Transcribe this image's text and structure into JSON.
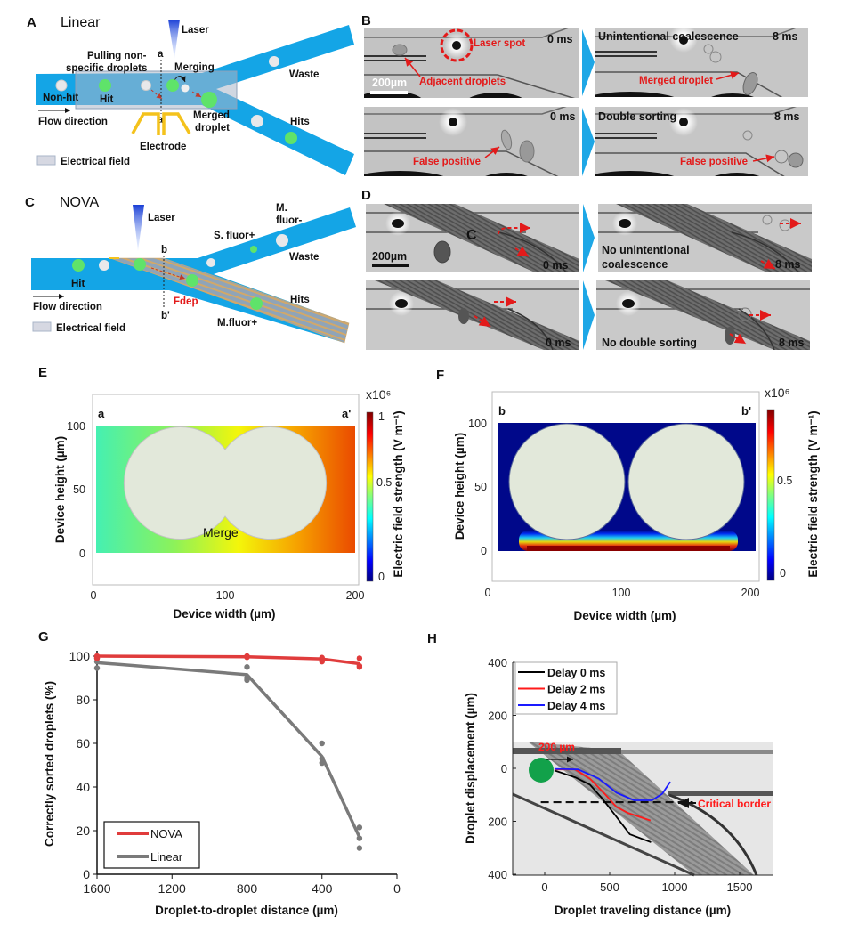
{
  "panels": {
    "A": {
      "letter": "A",
      "title": "Linear",
      "laser": "Laser",
      "pulling_1": "Pulling non-",
      "pulling_2": "specific droplets",
      "cut_top": "a",
      "cut_bottom": "a'",
      "merging": "Merging",
      "non_hit": "Non-hit",
      "hit": "Hit",
      "waste": "Waste",
      "hits": "Hits",
      "merged_1": "Merged",
      "merged_2": "droplet",
      "electrode": "Electrode",
      "flow": "Flow direction",
      "field_legend": "Electrical field"
    },
    "B": {
      "letter": "B",
      "t0": "0 ms",
      "t8": "8 ms",
      "laser_spot": "Laser spot",
      "adjacent": "Adjacent droplets",
      "scale": "200µm",
      "coalescence": "Unintentional coalescence",
      "merged": "Merged droplet",
      "false_pos": "False positive",
      "double": "Double sorting"
    },
    "C": {
      "letter": "C",
      "title": "NOVA",
      "laser": "Laser",
      "hit": "Hit",
      "flow": "Flow direction",
      "cut_top": "b",
      "cut_bottom": "b'",
      "fdep": "Fdep",
      "mfluor_plus": "M.fluor+",
      "hits": "Hits",
      "waste": "Waste",
      "sfluor": "S. fluor+",
      "mfluor_minus_1": "M.",
      "mfluor_minus_2": "fluor-",
      "field_legend": "Electrical field"
    },
    "D": {
      "letter": "D",
      "c_mark": "C",
      "scale": "200µm",
      "t0": "0 ms",
      "t8": "8 ms",
      "no_coal_1": "No unintentional",
      "no_coal_2": "coalescence",
      "no_double": "No double sorting"
    },
    "E": {
      "letter": "E",
      "left": "a",
      "right": "a'",
      "merge": "Merge"
    },
    "F": {
      "letter": "F",
      "left": "b",
      "right": "b'"
    },
    "G": {
      "letter": "G"
    },
    "H": {
      "letter": "H",
      "scale_label": "200 µm",
      "critical": "Critical border"
    }
  },
  "colors": {
    "channel": "#14a5e6",
    "hit": "#5fe36a",
    "red": "#e31a1a",
    "electrode": "#f4c21c",
    "nova": "#e03c3c",
    "linear": "#7a7a7a",
    "chevron": "#1ea7e6"
  },
  "chart_data": [
    {
      "panel": "E",
      "type": "heatmap",
      "xlabel": "Device width (µm)",
      "ylabel": "Device height (µm)",
      "xticks": [
        "0",
        "100",
        "200"
      ],
      "yticks": [
        "100",
        "50",
        "0"
      ],
      "xlim": [
        0,
        200
      ],
      "ylim": [
        -25,
        125
      ],
      "colorbar": {
        "label": "Electric field strength (V m⁻¹)",
        "multiplier": "x10⁶",
        "ticks": [
          "1",
          "0.5",
          "0"
        ],
        "range": [
          0,
          1
        ],
        "colormap": "jet"
      },
      "field_range_left_to_right": [
        0.35,
        0.85
      ]
    },
    {
      "panel": "F",
      "type": "heatmap",
      "xlabel": "Device width (µm)",
      "ylabel": "Device height (µm)",
      "xticks": [
        "0",
        "100",
        "200"
      ],
      "yticks": [
        "100",
        "50",
        "0"
      ],
      "xlim": [
        0,
        200
      ],
      "ylim": [
        -25,
        125
      ],
      "colorbar": {
        "label": "Electric field strength (V m⁻¹)",
        "multiplier": "x10⁶",
        "ticks": [
          "0.5",
          "0"
        ],
        "range": [
          0,
          1
        ],
        "colormap": "jet"
      }
    },
    {
      "panel": "G",
      "type": "line",
      "xlabel": "Droplet-to-droplet distance (µm)",
      "ylabel": "Correctly sorted droplets (%)",
      "xlim": [
        1600,
        0
      ],
      "ylim": [
        0,
        100
      ],
      "xticks": [
        "1600",
        "1200",
        "800",
        "400",
        "0"
      ],
      "yticks": [
        "0",
        "20",
        "40",
        "60",
        "80",
        "100"
      ],
      "legend": "bottom-left",
      "x": [
        1600,
        800,
        400,
        200
      ],
      "series": [
        {
          "name": "NOVA",
          "color": "#e03c3c",
          "mean": [
            100,
            99.7,
            98.7,
            96.5
          ],
          "replicates": [
            [
              100,
              99.5,
              99
            ],
            [
              100,
              99.5,
              99.6
            ],
            [
              99.3,
              97.5,
              98.5
            ],
            [
              99,
              95.5,
              95
            ]
          ]
        },
        {
          "name": "Linear",
          "color": "#7a7a7a",
          "mean": [
            97,
            91.5,
            54,
            17
          ],
          "replicates": [
            [
              99,
              97.5,
              94.5
            ],
            [
              95,
              90,
              89
            ],
            [
              60,
              53,
              51
            ],
            [
              21.5,
              16.5,
              12
            ]
          ]
        }
      ]
    },
    {
      "panel": "H",
      "type": "line",
      "xlabel": "Droplet traveling distance (µm)",
      "ylabel": "Droplet displacement (µm)",
      "xlim": [
        -250,
        1750
      ],
      "ylim": [
        -400,
        400
      ],
      "xticks": [
        "0",
        "500",
        "1000",
        "1500"
      ],
      "yticks": [
        "400",
        "200",
        "0",
        "200",
        "400"
      ],
      "legend": "top-left",
      "critical_border_y": -128,
      "series": [
        {
          "name": "Delay 0 ms",
          "color": "#000000",
          "x": [
            75,
            234,
            348,
            439,
            530,
            655,
            818
          ],
          "y": [
            -8,
            -34,
            -62,
            -112,
            -169,
            -249,
            -279
          ]
        },
        {
          "name": "Delay 2 ms",
          "color": "#ff1a1a",
          "x": [
            75,
            234,
            348,
            461,
            552,
            643,
            814
          ],
          "y": [
            -4,
            -4,
            -39,
            -96,
            -146,
            -169,
            -197
          ]
        },
        {
          "name": "Delay 4 ms",
          "color": "#1a1aff",
          "x": [
            75,
            257,
            416,
            552,
            689,
            825,
            905,
            966
          ],
          "y": [
            -2,
            -4,
            -39,
            -92,
            -121,
            -121,
            -96,
            -51
          ]
        }
      ]
    }
  ]
}
